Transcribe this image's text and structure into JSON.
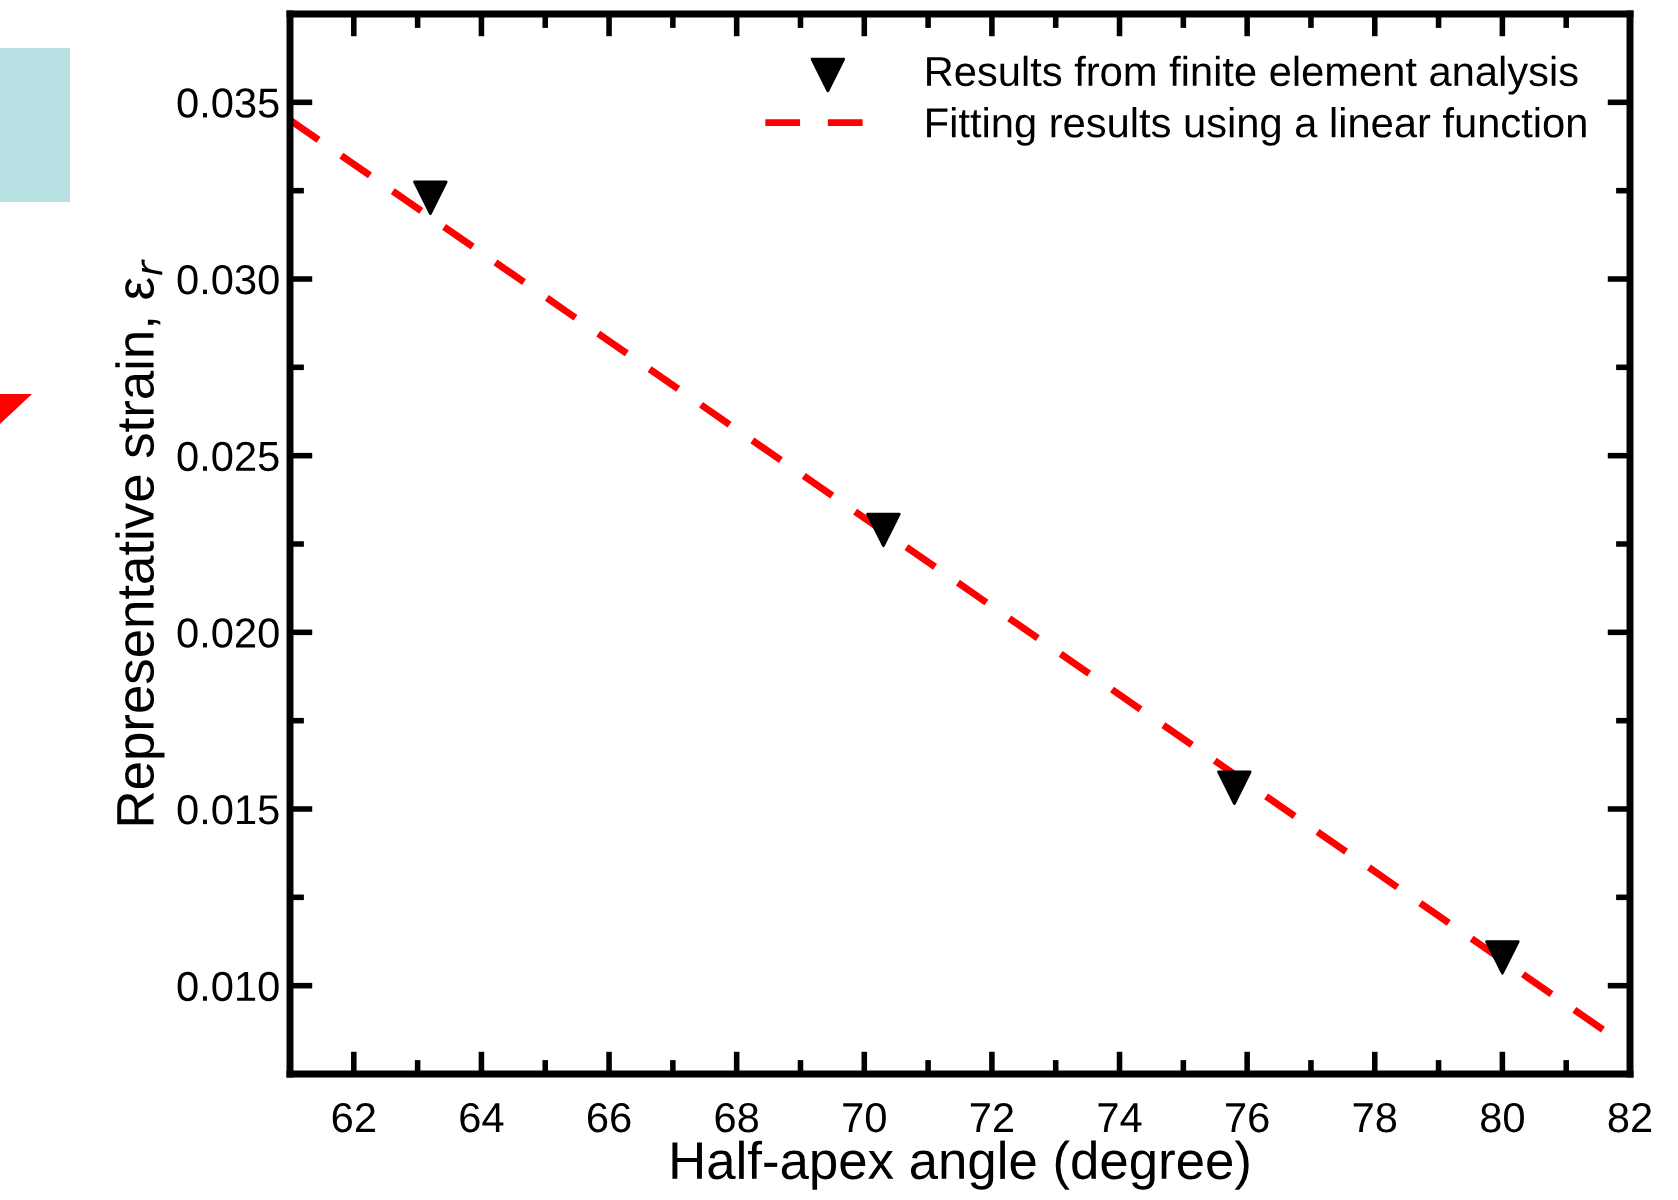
{
  "chart_data": {
    "type": "scatter",
    "xlabel": "Half-apex angle (degree)",
    "ylabel": "Representative strain, ε$_{r}$",
    "xlim": [
      61,
      82
    ],
    "ylim": [
      0.0075,
      0.0375
    ],
    "xticks": [
      62,
      64,
      66,
      68,
      70,
      72,
      74,
      76,
      78,
      80,
      82
    ],
    "yticks": [
      {
        "value": 0.01,
        "label": "0.010"
      },
      {
        "value": 0.015,
        "label": "0.015"
      },
      {
        "value": 0.02,
        "label": "0.020"
      },
      {
        "value": 0.025,
        "label": "0.025"
      },
      {
        "value": 0.03,
        "label": "0.030"
      },
      {
        "value": 0.035,
        "label": "0.035"
      }
    ],
    "legend": "top right",
    "grid": false,
    "series": [
      {
        "name": "Results from finite element analysis",
        "color": "#000000",
        "marker": "triangle",
        "x": [
          63.2,
          70.3,
          75.8,
          80.0
        ],
        "values": [
          0.0323,
          0.0229,
          0.0156,
          0.0108
        ]
      },
      {
        "name": "Fitting results using a linear function",
        "type": "line",
        "color": "#ff0000",
        "line_style": "dashed",
        "marker": "none",
        "x": [
          61,
          81.7
        ],
        "values": [
          0.0345,
          0.0086
        ]
      }
    ]
  }
}
